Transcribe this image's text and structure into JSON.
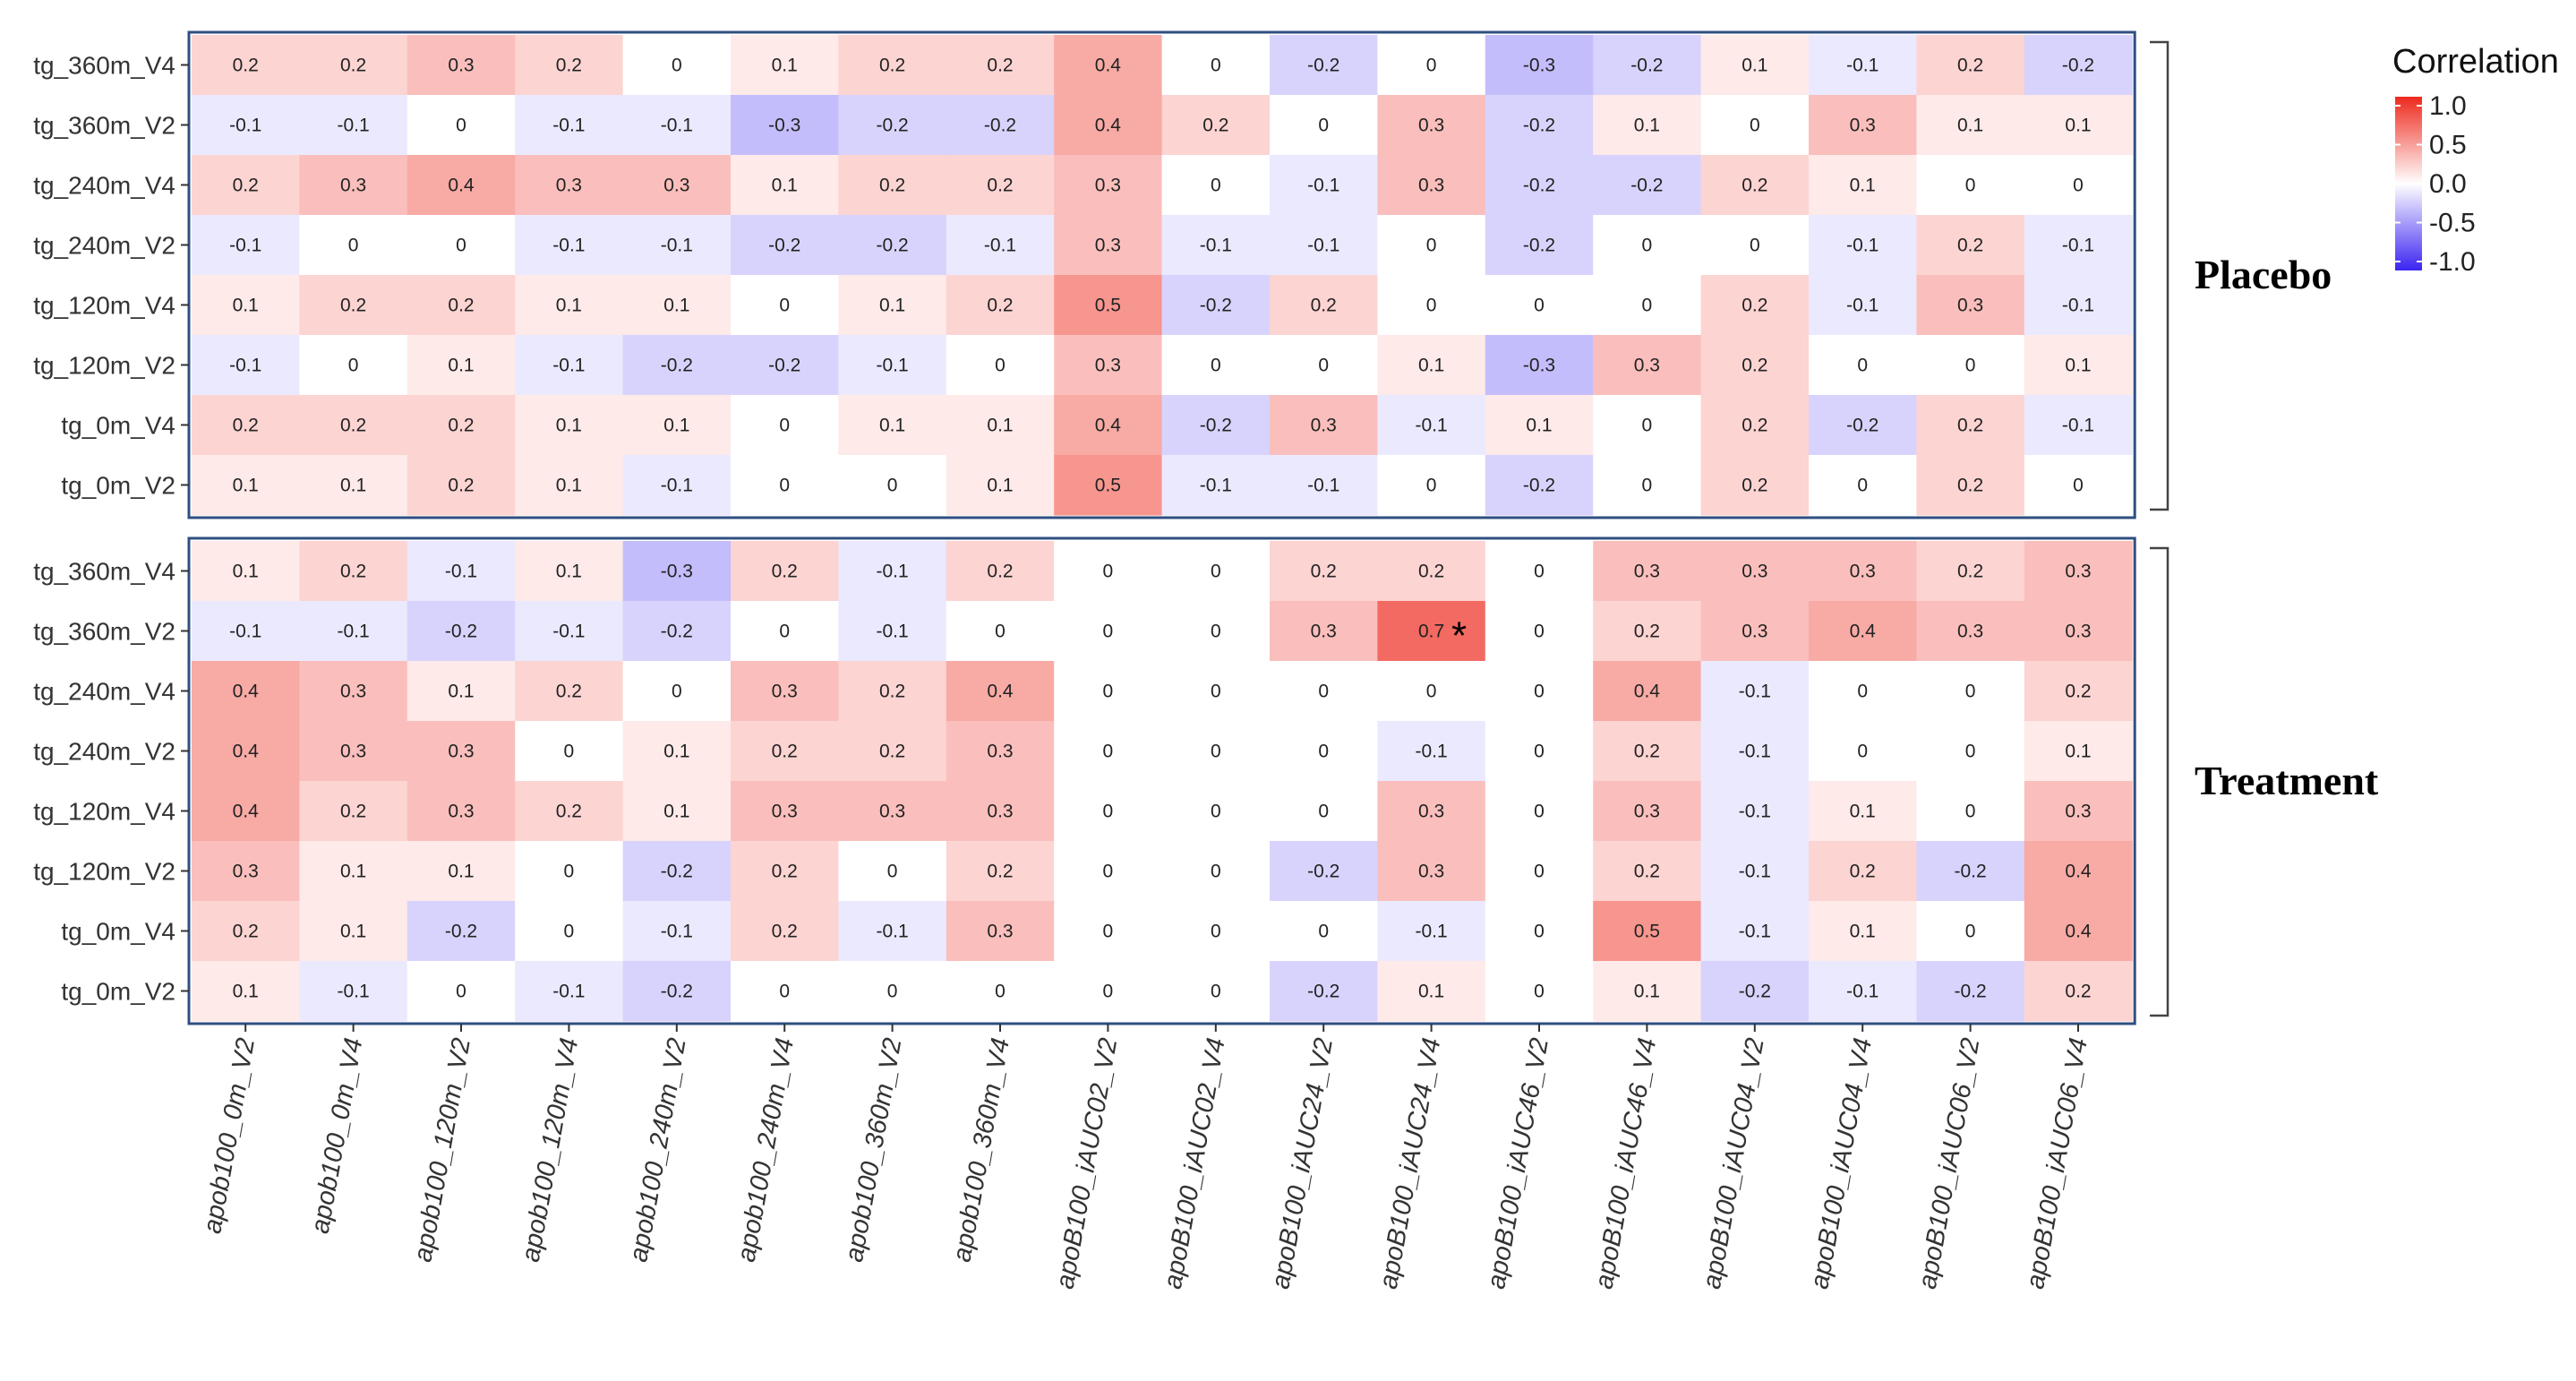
{
  "chart_data": {
    "type": "heatmap",
    "legend": {
      "title": "Correlation",
      "ticks": [
        "1.0",
        "0.5",
        "0.0",
        "-0.5",
        "-1.0"
      ],
      "range": [
        -1.0,
        1.0
      ],
      "colors": {
        "low": "#3b24f2",
        "mid": "#ffffff",
        "high": "#ee2a1e"
      }
    },
    "columns": [
      "apob100_0m_V2",
      "apob100_0m_V4",
      "apob100_120m_V2",
      "apob100_120m_V4",
      "apob100_240m_V2",
      "apob100_240m_V4",
      "apob100_360m_V2",
      "apob100_360m_V4",
      "apoB100_iAUC02_V2",
      "apoB100_iAUC02_V4",
      "apoB100_iAUC24_V2",
      "apoB100_iAUC24_V4",
      "apoB100_iAUC46_V2",
      "apoB100_iAUC46_V4",
      "apoB100_iAUC04_V2",
      "apoB100_iAUC04_V4",
      "apoB100_iAUC06_V2",
      "apoB100_iAUC06_V4"
    ],
    "rows": [
      "tg_360m_V4",
      "tg_360m_V2",
      "tg_240m_V4",
      "tg_240m_V2",
      "tg_120m_V4",
      "tg_120m_V2",
      "tg_0m_V4",
      "tg_0m_V2"
    ],
    "panels": [
      {
        "name": "Placebo",
        "values": [
          [
            "0.2",
            "0.2",
            "0.3",
            "0.2",
            "0",
            "0.1",
            "0.2",
            "0.2",
            "0.4",
            "0",
            "-0.2",
            "0",
            "-0.3",
            "-0.2",
            "0.1",
            "-0.1",
            "0.2",
            "-0.2"
          ],
          [
            "-0.1",
            "-0.1",
            "0",
            "-0.1",
            "-0.1",
            "-0.3",
            "-0.2",
            "-0.2",
            "0.4",
            "0.2",
            "0",
            "0.3",
            "-0.2",
            "0.1",
            "0",
            "0.3",
            "0.1",
            "0.1"
          ],
          [
            "0.2",
            "0.3",
            "0.4",
            "0.3",
            "0.3",
            "0.1",
            "0.2",
            "0.2",
            "0.3",
            "0",
            "-0.1",
            "0.3",
            "-0.2",
            "-0.2",
            "0.2",
            "0.1",
            "0",
            "0"
          ],
          [
            "-0.1",
            "0",
            "0",
            "-0.1",
            "-0.1",
            "-0.2",
            "-0.2",
            "-0.1",
            "0.3",
            "-0.1",
            "-0.1",
            "0",
            "-0.2",
            "0",
            "0",
            "-0.1",
            "0.2",
            "-0.1"
          ],
          [
            "0.1",
            "0.2",
            "0.2",
            "0.1",
            "0.1",
            "0",
            "0.1",
            "0.2",
            "0.5",
            "-0.2",
            "0.2",
            "0",
            "0",
            "0",
            "0.2",
            "-0.1",
            "0.3",
            "-0.1"
          ],
          [
            "-0.1",
            "0",
            "0.1",
            "-0.1",
            "-0.2",
            "-0.2",
            "-0.1",
            "0",
            "0.3",
            "0",
            "0",
            "0.1",
            "-0.3",
            "0.3",
            "0.2",
            "0",
            "0",
            "0.1"
          ],
          [
            "0.2",
            "0.2",
            "0.2",
            "0.1",
            "0.1",
            "0",
            "0.1",
            "0.1",
            "0.4",
            "-0.2",
            "0.3",
            "-0.1",
            "0.1",
            "0",
            "0.2",
            "-0.2",
            "0.2",
            "-0.1"
          ],
          [
            "0.1",
            "0.1",
            "0.2",
            "0.1",
            "-0.1",
            "0",
            "0",
            "0.1",
            "0.5",
            "-0.1",
            "-0.1",
            "0",
            "-0.2",
            "0",
            "0.2",
            "0",
            "0.2",
            "0"
          ]
        ],
        "significant": []
      },
      {
        "name": "Treatment",
        "values": [
          [
            "0.1",
            "0.2",
            "-0.1",
            "0.1",
            "-0.3",
            "0.2",
            "-0.1",
            "0.2",
            "0",
            "0",
            "0.2",
            "0.2",
            "0",
            "0.3",
            "0.3",
            "0.3",
            "0.2",
            "0.3"
          ],
          [
            "-0.1",
            "-0.1",
            "-0.2",
            "-0.1",
            "-0.2",
            "0",
            "-0.1",
            "0",
            "0",
            "0",
            "0.3",
            "0.7",
            "0",
            "0.2",
            "0.3",
            "0.4",
            "0.3",
            "0.3"
          ],
          [
            "0.4",
            "0.3",
            "0.1",
            "0.2",
            "0",
            "0.3",
            "0.2",
            "0.4",
            "0",
            "0",
            "0",
            "0",
            "0",
            "0.4",
            "-0.1",
            "0",
            "0",
            "0.2"
          ],
          [
            "0.4",
            "0.3",
            "0.3",
            "0",
            "0.1",
            "0.2",
            "0.2",
            "0.3",
            "0",
            "0",
            "0",
            "-0.1",
            "0",
            "0.2",
            "-0.1",
            "0",
            "0",
            "0.1"
          ],
          [
            "0.4",
            "0.2",
            "0.3",
            "0.2",
            "0.1",
            "0.3",
            "0.3",
            "0.3",
            "0",
            "0",
            "0",
            "0.3",
            "0",
            "0.3",
            "-0.1",
            "0.1",
            "0",
            "0.3"
          ],
          [
            "0.3",
            "0.1",
            "0.1",
            "0",
            "-0.2",
            "0.2",
            "0",
            "0.2",
            "0",
            "0",
            "-0.2",
            "0.3",
            "0",
            "0.2",
            "-0.1",
            "0.2",
            "-0.2",
            "0.4"
          ],
          [
            "0.2",
            "0.1",
            "-0.2",
            "0",
            "-0.1",
            "0.2",
            "-0.1",
            "0.3",
            "0",
            "0",
            "0",
            "-0.1",
            "0",
            "0.5",
            "-0.1",
            "0.1",
            "0",
            "0.4"
          ],
          [
            "0.1",
            "-0.1",
            "0",
            "-0.1",
            "-0.2",
            "0",
            "0",
            "0",
            "0",
            "0",
            "-0.2",
            "0.1",
            "0",
            "0.1",
            "-0.2",
            "-0.1",
            "-0.2",
            "0.2"
          ]
        ],
        "significant": [
          {
            "row": 1,
            "col": 11,
            "mark": "*"
          }
        ]
      }
    ]
  }
}
